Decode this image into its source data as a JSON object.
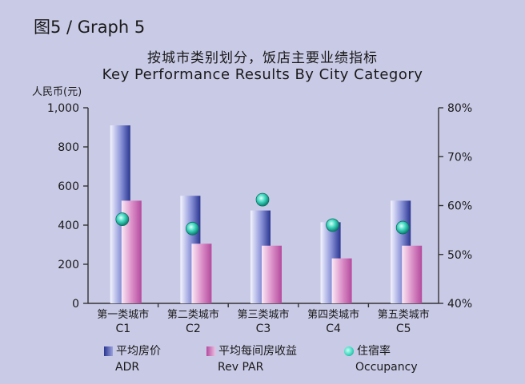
{
  "header": {
    "graph_label": "图5 / Graph 5",
    "title_zh": "按城市类别划分，饭店主要业绩指标",
    "title_en": "Key Performance Results By City Category",
    "y_unit": "人民币(元)"
  },
  "legend": {
    "adr_zh": "平均房价",
    "adr_en": "ADR",
    "rev_zh": "平均每间房收益",
    "rev_en": "Rev PAR",
    "occ_zh": "住宿率",
    "occ_en": "Occupancy"
  },
  "colors": {
    "adr_dark": "#2a3590",
    "adr_light": "#9aa2de",
    "rev_dark": "#b44a9e",
    "rev_light": "#ecbfe0",
    "occ": "#3fd8c0",
    "background": "#c9cae6"
  },
  "chart_data": {
    "type": "bar",
    "title": "按城市类别划分，饭店主要业绩指标 / Key Performance Results By City Category",
    "categories_zh": [
      "第一类城市",
      "第二类城市",
      "第三类城市",
      "第四类城市",
      "第五类城市"
    ],
    "categories": [
      "C1",
      "C2",
      "C3",
      "C4",
      "C5"
    ],
    "ylabel": "人民币(元)",
    "ylim": [
      0,
      1000
    ],
    "yticks": [
      0,
      200,
      400,
      600,
      800,
      "1,000"
    ],
    "y2lim": [
      40,
      80
    ],
    "y2ticks": [
      "40%",
      "50%",
      "60%",
      "70%",
      "80%"
    ],
    "series": [
      {
        "name": "平均房价 ADR",
        "axis": "left",
        "type": "bar",
        "values": [
          910,
          550,
          475,
          415,
          525
        ]
      },
      {
        "name": "平均每间房收益 Rev PAR",
        "axis": "left",
        "type": "bar",
        "values": [
          525,
          305,
          295,
          230,
          295
        ]
      },
      {
        "name": "住宿率 Occupancy",
        "axis": "right",
        "type": "scatter",
        "values": [
          57.2,
          55.3,
          61.2,
          56.0,
          55.5
        ]
      }
    ],
    "grid": false,
    "legend_position": "bottom"
  }
}
